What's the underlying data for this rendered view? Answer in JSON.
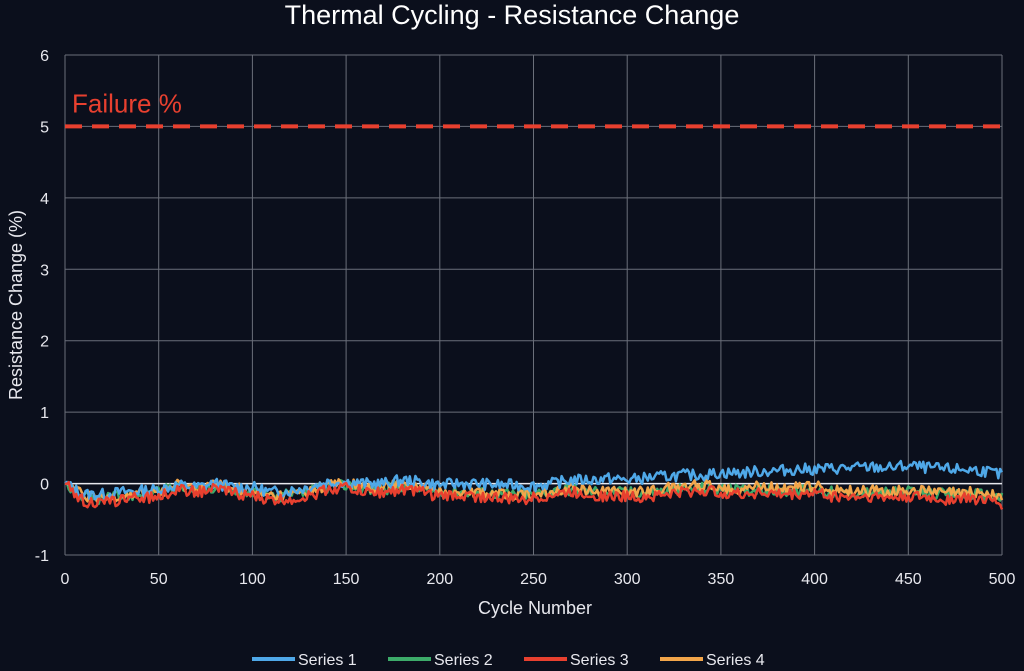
{
  "chart_data": {
    "type": "line",
    "title": "Thermal Cycling - Resistance Change",
    "xlabel": "Cycle Number",
    "ylabel": "Resistance Change (%)",
    "xlim": [
      0,
      500
    ],
    "ylim": [
      -1,
      6
    ],
    "xticks": [
      "0",
      "50",
      "100",
      "150",
      "200",
      "250",
      "300",
      "350",
      "400",
      "450",
      "500"
    ],
    "yticks": [
      "-1",
      "0",
      "1",
      "2",
      "3",
      "4",
      "5",
      "6"
    ],
    "grid": true,
    "legend_position": "bottom",
    "threshold": {
      "label": "Failure %",
      "value": 5,
      "color": "#e8402f"
    },
    "x": [
      0,
      10,
      20,
      30,
      40,
      50,
      60,
      70,
      80,
      90,
      100,
      110,
      120,
      130,
      140,
      150,
      160,
      170,
      180,
      190,
      200,
      210,
      220,
      230,
      240,
      250,
      260,
      270,
      280,
      290,
      300,
      310,
      320,
      330,
      340,
      350,
      360,
      370,
      380,
      390,
      400,
      410,
      420,
      430,
      440,
      450,
      460,
      470,
      480,
      490,
      500
    ],
    "series": [
      {
        "name": "Series 1",
        "color": "#4fa8e8",
        "values": [
          0.0,
          -0.15,
          -0.15,
          -0.12,
          -0.1,
          -0.08,
          -0.02,
          -0.05,
          0.0,
          -0.05,
          -0.05,
          -0.12,
          -0.1,
          -0.05,
          0.02,
          0.02,
          0.0,
          0.0,
          0.05,
          0.02,
          -0.02,
          0.0,
          0.0,
          -0.02,
          -0.02,
          -0.03,
          0.0,
          0.05,
          0.05,
          0.07,
          0.05,
          0.08,
          0.1,
          0.12,
          0.12,
          0.15,
          0.15,
          0.17,
          0.18,
          0.2,
          0.2,
          0.21,
          0.22,
          0.23,
          0.22,
          0.25,
          0.22,
          0.2,
          0.2,
          0.18,
          0.12
        ]
      },
      {
        "name": "Series 2",
        "color": "#3dab6a",
        "values": [
          0.0,
          -0.2,
          -0.22,
          -0.18,
          -0.15,
          -0.12,
          -0.05,
          -0.08,
          -0.05,
          -0.08,
          -0.12,
          -0.18,
          -0.16,
          -0.12,
          -0.05,
          -0.02,
          -0.08,
          -0.08,
          -0.03,
          -0.08,
          -0.12,
          -0.1,
          -0.12,
          -0.14,
          -0.15,
          -0.14,
          -0.1,
          -0.08,
          -0.1,
          -0.12,
          -0.12,
          -0.12,
          -0.1,
          -0.08,
          -0.06,
          -0.08,
          -0.1,
          -0.08,
          -0.1,
          -0.1,
          -0.08,
          -0.12,
          -0.12,
          -0.12,
          -0.13,
          -0.12,
          -0.14,
          -0.15,
          -0.14,
          -0.15,
          -0.2
        ]
      },
      {
        "name": "Series 3",
        "color": "#e8402f",
        "values": [
          0.0,
          -0.25,
          -0.28,
          -0.22,
          -0.2,
          -0.18,
          -0.08,
          -0.12,
          -0.08,
          -0.12,
          -0.18,
          -0.24,
          -0.22,
          -0.18,
          -0.08,
          -0.05,
          -0.12,
          -0.12,
          -0.08,
          -0.12,
          -0.18,
          -0.16,
          -0.18,
          -0.2,
          -0.22,
          -0.2,
          -0.16,
          -0.12,
          -0.15,
          -0.18,
          -0.18,
          -0.18,
          -0.15,
          -0.12,
          -0.1,
          -0.12,
          -0.15,
          -0.12,
          -0.15,
          -0.15,
          -0.12,
          -0.18,
          -0.18,
          -0.18,
          -0.2,
          -0.18,
          -0.2,
          -0.22,
          -0.2,
          -0.22,
          -0.3
        ]
      },
      {
        "name": "Series 4",
        "color": "#f2a54a",
        "values": [
          0.0,
          -0.18,
          -0.22,
          -0.16,
          -0.14,
          -0.12,
          -0.02,
          -0.06,
          -0.02,
          -0.06,
          -0.12,
          -0.18,
          -0.16,
          -0.12,
          -0.02,
          0.0,
          -0.06,
          -0.05,
          -0.02,
          -0.06,
          -0.12,
          -0.1,
          -0.12,
          -0.14,
          -0.16,
          -0.14,
          -0.1,
          -0.06,
          -0.08,
          -0.12,
          -0.12,
          -0.1,
          -0.08,
          -0.04,
          -0.02,
          -0.04,
          -0.08,
          -0.04,
          -0.06,
          -0.06,
          -0.04,
          -0.1,
          -0.1,
          -0.1,
          -0.12,
          -0.1,
          -0.12,
          -0.14,
          -0.12,
          -0.14,
          -0.2
        ]
      }
    ]
  }
}
